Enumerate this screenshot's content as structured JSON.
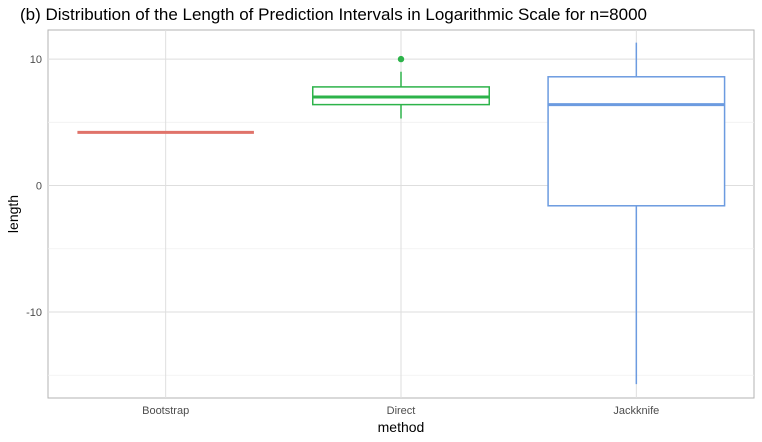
{
  "chart_data": {
    "type": "box",
    "title": "(b) Distribution of the Length of Prediction Intervals in Logarithmic Scale for n=8000",
    "xlabel": "method",
    "ylabel": "length",
    "categories": [
      "Bootstrap",
      "Direct",
      "Jackknife"
    ],
    "ylim": [
      -16.8,
      12.3
    ],
    "yticks": [
      -10,
      0,
      10
    ],
    "grid": true,
    "boxes": [
      {
        "category": "Bootstrap",
        "color": "#E0736A",
        "whisker_low": 4.2,
        "q1": 4.2,
        "median": 4.2,
        "q3": 4.2,
        "whisker_high": 4.2,
        "outliers": []
      },
      {
        "category": "Direct",
        "color": "#2DB34A",
        "whisker_low": 5.3,
        "q1": 6.4,
        "median": 7.0,
        "q3": 7.8,
        "whisker_high": 9.0,
        "outliers": [
          10.0
        ]
      },
      {
        "category": "Jackknife",
        "color": "#6C9BE0",
        "whisker_low": -15.7,
        "q1": -1.6,
        "median": 6.4,
        "q3": 8.6,
        "whisker_high": 11.3,
        "outliers": []
      }
    ]
  }
}
